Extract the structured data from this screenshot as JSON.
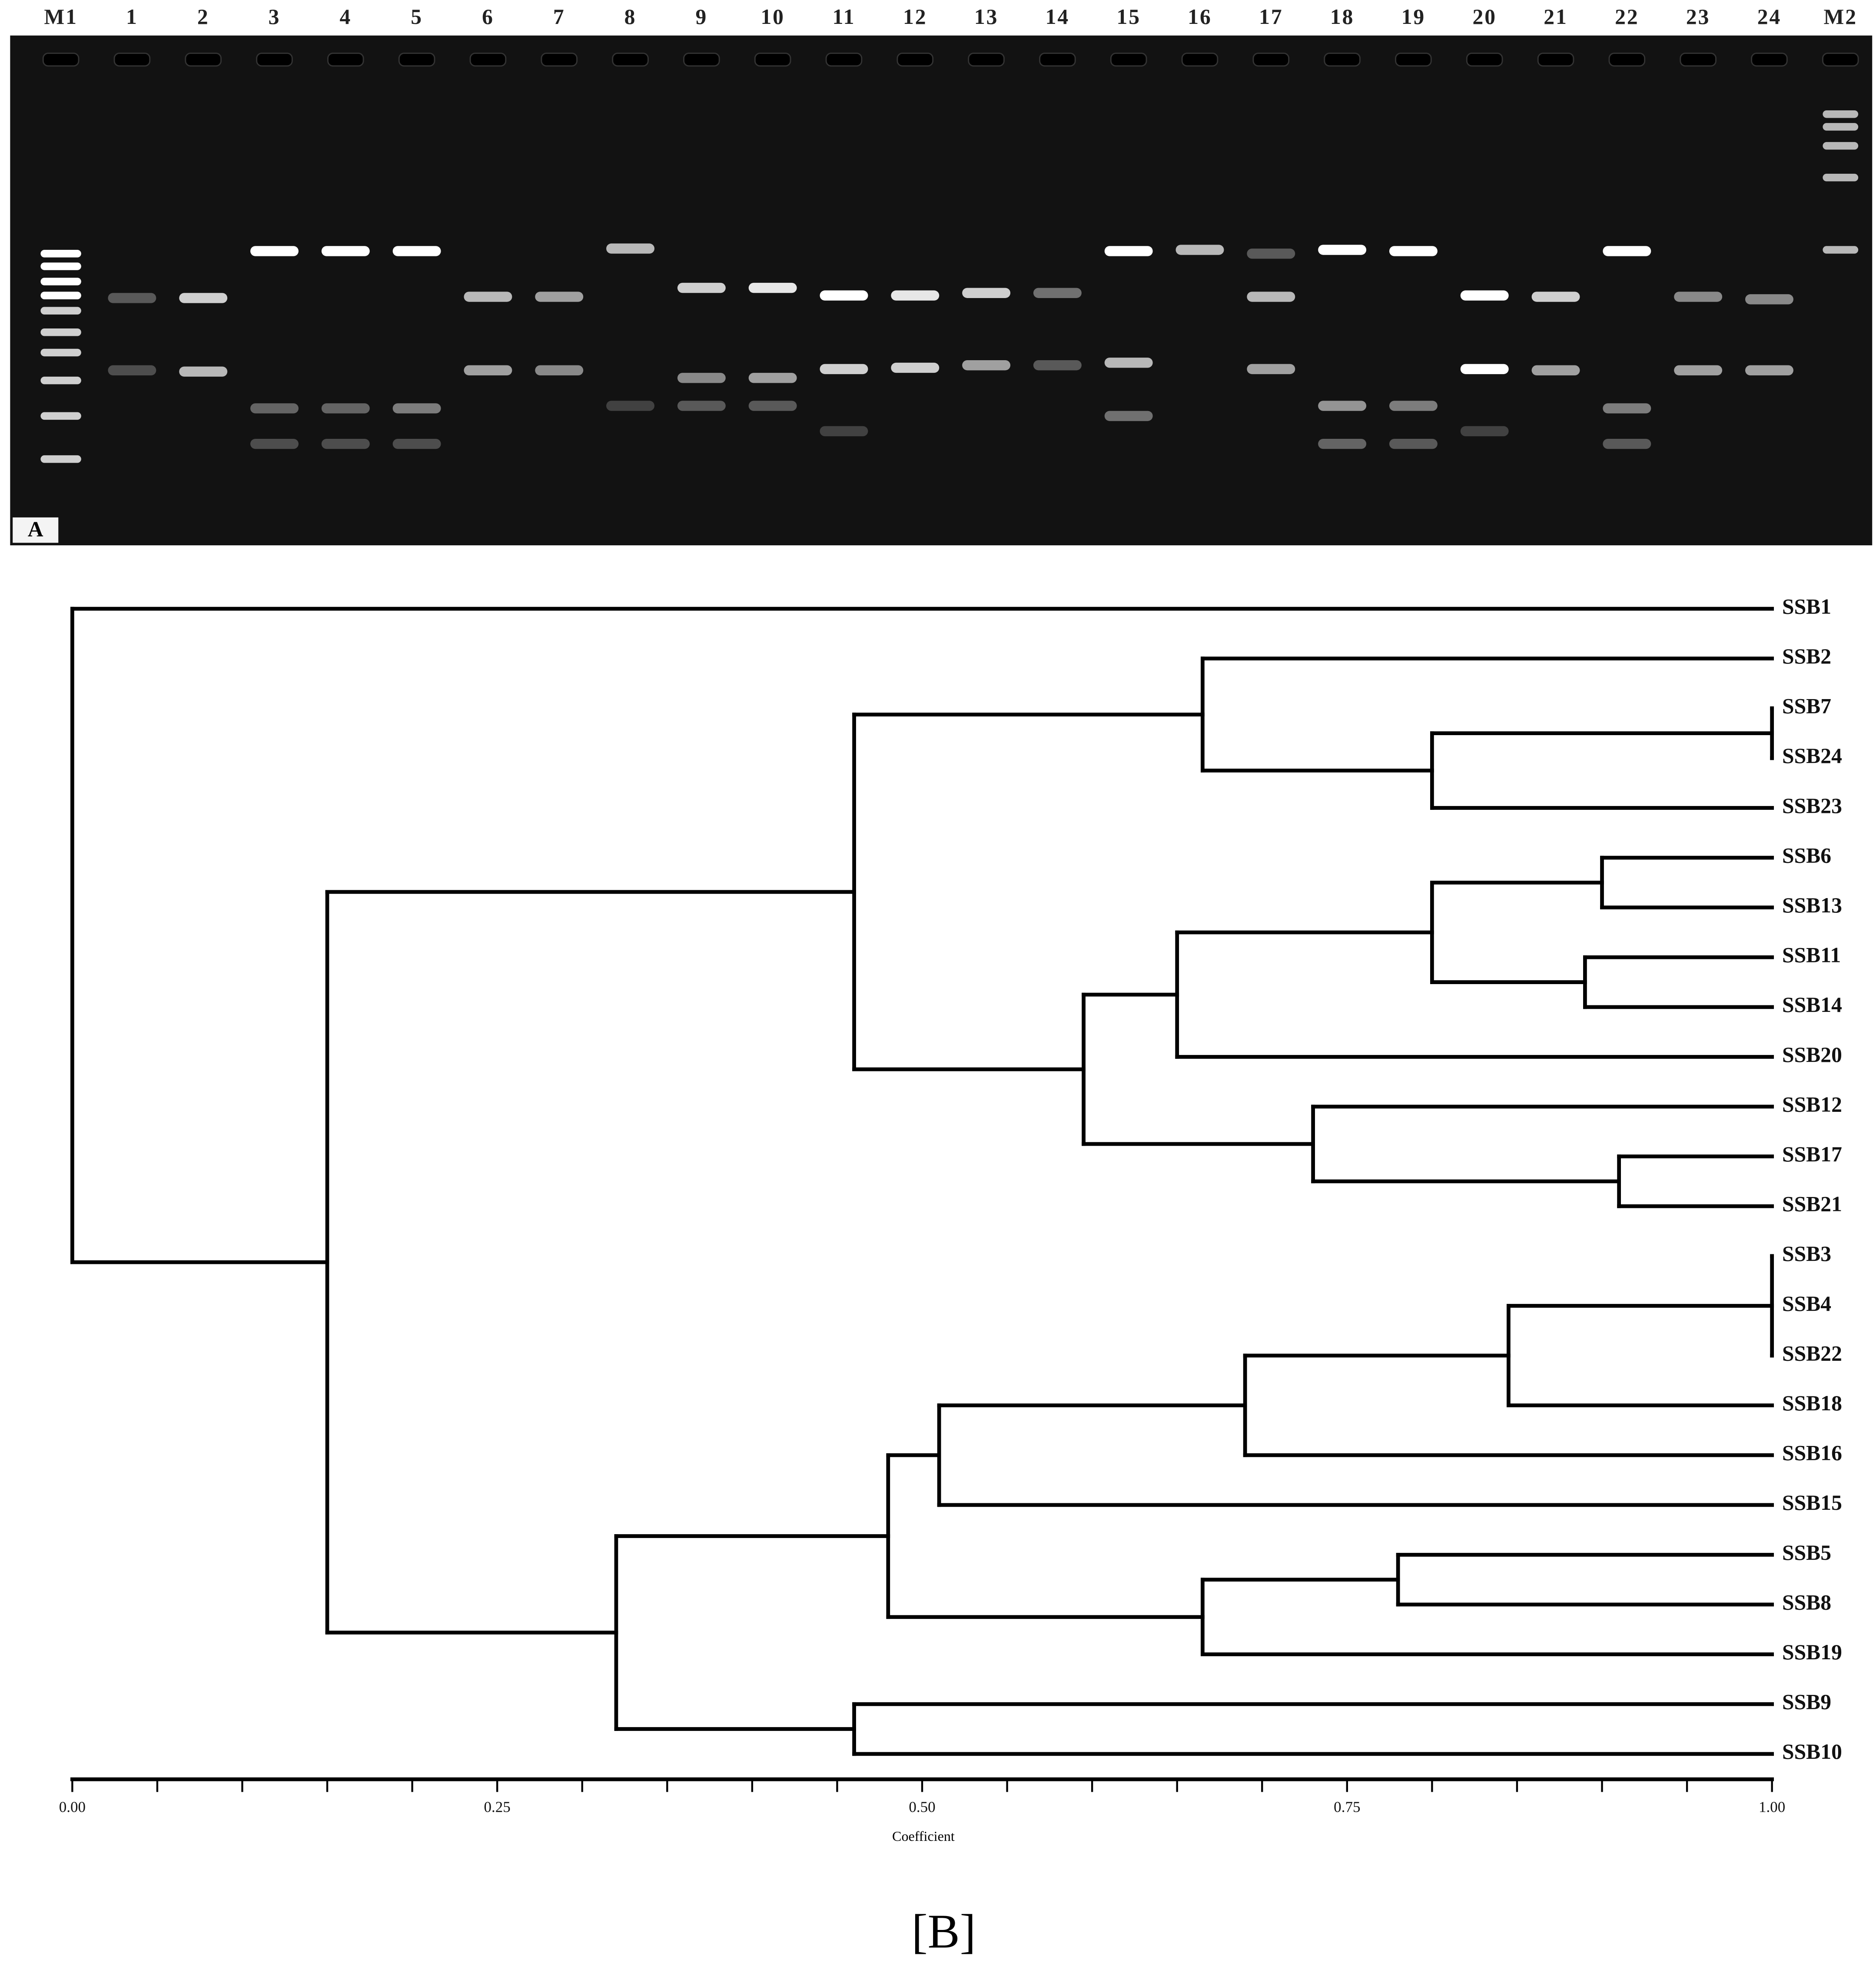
{
  "gel": {
    "lanes": [
      "M1",
      "1",
      "2",
      "3",
      "4",
      "5",
      "6",
      "7",
      "8",
      "9",
      "10",
      "11",
      "12",
      "13",
      "14",
      "15",
      "16",
      "17",
      "18",
      "19",
      "20",
      "21",
      "22",
      "23",
      "24",
      "M2"
    ],
    "panel_label": "A"
  },
  "chart_data": {
    "type": "dendrogram",
    "color": "#000000",
    "tree": {
      "height": 0,
      "children": [
        "SSB1",
        {
          "height": 0.15,
          "children": [
            {
              "height": 0.46,
              "children": [
                {
                  "height": 0.665,
                  "children": [
                    "SSB2",
                    {
                      "height": 0.8,
                      "children": [
                        {
                          "height": 1,
                          "children": [
                            "SSB7",
                            "SSB24"
                          ]
                        },
                        "SSB23"
                      ]
                    }
                  ]
                },
                {
                  "height": 0.595,
                  "children": [
                    {
                      "height": 0.65,
                      "children": [
                        {
                          "height": 0.8,
                          "children": [
                            {
                              "height": 0.9,
                              "children": [
                                "SSB6",
                                "SSB13"
                              ]
                            },
                            {
                              "height": 0.89,
                              "children": [
                                "SSB11",
                                "SSB14"
                              ]
                            }
                          ]
                        },
                        "SSB20"
                      ]
                    },
                    {
                      "height": 0.73,
                      "children": [
                        "SSB12",
                        {
                          "height": 0.91,
                          "children": [
                            "SSB17",
                            "SSB21"
                          ]
                        }
                      ]
                    }
                  ]
                }
              ]
            },
            {
              "height": 0.32,
              "children": [
                {
                  "height": 0.48,
                  "children": [
                    {
                      "height": 0.51,
                      "children": [
                        {
                          "height": 0.69,
                          "children": [
                            {
                              "height": 0.845,
                              "children": [
                                {
                                  "height": 1,
                                  "children": [
                                    "SSB3",
                                    "SSB4",
                                    "SSB22"
                                  ]
                                },
                                "SSB18"
                              ]
                            },
                            "SSB16"
                          ]
                        },
                        "SSB15"
                      ]
                    },
                    {
                      "height": 0.665,
                      "children": [
                        {
                          "height": 0.78,
                          "children": [
                            "SSB5",
                            "SSB8"
                          ]
                        },
                        "SSB19"
                      ]
                    }
                  ]
                },
                {
                  "height": 0.46,
                  "children": [
                    "SSB9",
                    "SSB10"
                  ]
                }
              ]
            }
          ]
        }
      ]
    },
    "xlim": [
      0,
      1
    ],
    "xticks": [
      {
        "value": 0,
        "label": "0.00"
      },
      {
        "value": 0.25,
        "label": "0.25"
      },
      {
        "value": 0.5,
        "label": "0.50"
      },
      {
        "value": 0.75,
        "label": "0.75"
      },
      {
        "value": 1,
        "label": "1.00"
      }
    ],
    "xminorticks": [
      0.05,
      0.1,
      0.15,
      0.2,
      0.3,
      0.35,
      0.4,
      0.45,
      0.55,
      0.6,
      0.65,
      0.7,
      0.8,
      0.85,
      0.9,
      0.95
    ],
    "xlabel": "Coefficient",
    "caption": "[B]"
  }
}
